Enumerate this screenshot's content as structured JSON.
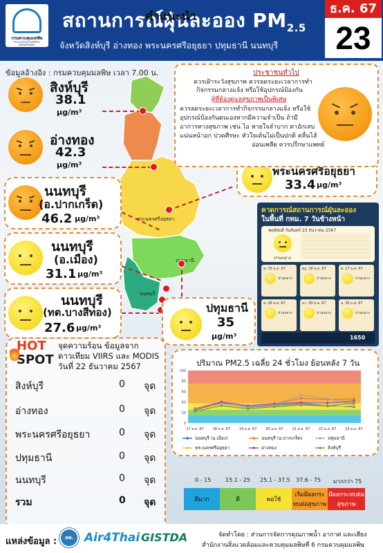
{
  "header": {
    "title": "สถานการณ์ฝุ่นละออง PM",
    "title_sub": "2.5",
    "subtitle": "จังหวัดสิงห์บุรี อ่างทอง พระนครศรีอยุธยา ปทุมธานี นนทบุรี",
    "date_month": "ธ.ค. 67",
    "date_day": "23",
    "logo_name": "กรมควบคุมมลพิษ",
    "logo_sub": "POLLUTION CONTROL DEPARTMENT"
  },
  "reference": "ข้อมูลอ้างอิง : กรมควบคุมมลพิษ เวลา 7.00 น.",
  "unit": "μg/m³",
  "provinces": [
    {
      "name": "สิงห์บุรี",
      "value": "38.1",
      "level": "orange"
    },
    {
      "name": "อ่างทอง",
      "value": "42.3",
      "level": "orange"
    },
    {
      "name": "พระนครศรีอยุธยา",
      "value": "33.4",
      "level": "yellow"
    },
    {
      "name": "นนทบุรี",
      "name2": "(อ.ปากเกร็ด)",
      "value": "46.2",
      "level": "orange"
    },
    {
      "name": "นนทบุรี",
      "name2": "(อ.เมือง)",
      "value": "31.1",
      "level": "yellow"
    },
    {
      "name": "นนทบุรี",
      "name2": "(ทต.บางสีทอง)",
      "value": "27.6",
      "level": "yellow"
    },
    {
      "name": "ปทุมธานี",
      "value": "35",
      "level": "yellow"
    }
  ],
  "map_labels": [
    "พระนครศรีอยุธยา",
    "ปทุมธานี",
    "นนทบุรี"
  ],
  "advice": {
    "title": "คำแนะนำ",
    "general_head": "ประชาชนทั่วไป",
    "general_1": "ควรเฝ้าระวังสุขภาพ ควรลดระยะเวลาการทำ",
    "general_2": "กิจกรรมกลางแจ้ง หรือใช้อุปกรณ์ป้องกัน",
    "risk_head": "ผู้ที่ต้องดูแลสุขภาพเป็นพิเศษ",
    "risk_1": "ควรลดระยะเวลาการทำกิจกรรมกลางแจ้ง หรือใช้",
    "risk_2": "อุปกรณ์ป้องกันตนเองหากมีความจำเป็น ถ้ามี",
    "risk_3": "อาการทางสุขภาพ เช่น ไอ หายใจลำบาก ตาอักเสบ",
    "risk_4": "แน่นหน้าอก ปวดศีรษะ หัวใจเต้นไม่เป็นปกติ คลื่นไส้",
    "risk_5": "อ่อนเพลีย ควรปรึกษาแพทย์"
  },
  "forecast": {
    "title1": "คาดการณ์สถานการณ์ฝุ่นละออง",
    "title2": "ในพื้นที่ กทม. 7 วันข้างหน้า",
    "date": "พฤหัสบดี วันจันทร์ 23 ธันวาคม 2567",
    "main_status": "ปานกลาง",
    "days": [
      {
        "label": "พ. 25 ธ.ค. 67",
        "status": "ปานกลาง"
      },
      {
        "label": "พฤ. 26 ธ.ค. 67",
        "status": "ปานกลาง"
      },
      {
        "label": "ศ. 27 ธ.ค. 67",
        "status": "ปานกลาง"
      },
      {
        "label": "ส. 28 ธ.ค. 67",
        "status": "ปานกลาง"
      },
      {
        "label": "อา. 29 ธ.ค. 67",
        "status": "ปานกลาง"
      },
      {
        "label": "จ. 30 ธ.ค. 67",
        "status": "ปานกลาง"
      }
    ],
    "hotline": "1650"
  },
  "hotspot": {
    "hot": "HOT",
    "spot": "SPOT",
    "desc1": "จุดความร้อน ข้อมูลจาก",
    "desc2": "ดาวเทียม VIIRS และ MODIS",
    "desc3": "วันที่ 22 ธันวาคม 2567",
    "unit": "จุด",
    "rows": [
      {
        "name": "สิงห์บุรี",
        "count": "0"
      },
      {
        "name": "อ่างทอง",
        "count": "0"
      },
      {
        "name": "พระนครศรีอยุธยา",
        "count": "0"
      },
      {
        "name": "ปทุมธานี",
        "count": "0"
      },
      {
        "name": "นนทบุรี",
        "count": "0"
      }
    ],
    "total_label": "รวม",
    "total_count": "0"
  },
  "chart_data": {
    "type": "line",
    "title": "ปริมาณ PM2.5 เฉลี่ย 24 ชั่วโมง ย้อนหลัง 7 วัน",
    "categories": [
      "17 ธ.ค. 67",
      "18 ธ.ค. 67",
      "19 ธ.ค. 67",
      "20 ธ.ค. 67",
      "21 ธ.ค. 67",
      "22 ธ.ค. 67",
      "23 ธ.ค. 67"
    ],
    "ylim": [
      0,
      100
    ],
    "bands": [
      {
        "from": 0,
        "to": 15,
        "color": "#57c5e8"
      },
      {
        "from": 15,
        "to": 25,
        "color": "#8fd36a"
      },
      {
        "from": 25,
        "to": 37.5,
        "color": "#f6e64a"
      },
      {
        "from": 37.5,
        "to": 75,
        "color": "#f6b34b"
      },
      {
        "from": 75,
        "to": 100,
        "color": "#f08a7a"
      }
    ],
    "series": [
      {
        "name": "นนทบุรี (อ.เมือง)",
        "color": "#3a6bc8",
        "values": [
          26,
          38,
          30,
          34,
          37,
          33,
          31
        ]
      },
      {
        "name": "นนทบุรี (อ.ปากเกร็ด)",
        "color": "#e77b2c",
        "values": [
          28,
          40,
          33,
          36,
          47,
          45,
          46
        ]
      },
      {
        "name": "ปทุมธานี",
        "color": "#a9a9a9",
        "values": [
          27,
          37,
          31,
          35,
          53,
          47,
          35
        ]
      },
      {
        "name": "พระนครศรีอยุธยา",
        "color": "#f2c12e",
        "values": [
          24,
          35,
          28,
          32,
          35,
          31,
          33
        ]
      },
      {
        "name": "อ่างทอง",
        "color": "#9b4ec2",
        "values": [
          25,
          40,
          33,
          37,
          39,
          38,
          42
        ]
      },
      {
        "name": "สิงห์บุรี",
        "color": "#5fae3e",
        "values": [
          22,
          33,
          27,
          31,
          34,
          33,
          38
        ]
      }
    ]
  },
  "scale": {
    "headers": [
      "0 - 15",
      "15.1 - 25",
      "25.1 - 37.5",
      "37.6 - 75",
      "มากกว่า 75"
    ],
    "labels": [
      "ดีมาก",
      "ดี",
      "พอใช้",
      "เริ่มมีผลกระทบต่อสุขภาพ",
      "มีผลกระทบต่อสุขภาพ"
    ],
    "colors": [
      "#1fa3dc",
      "#7cc75a",
      "#f5e231",
      "#f39a26",
      "#e12b25"
    ]
  },
  "footer": {
    "source_label": "แหล่งข้อมูล :",
    "src_pcd": "คพ.",
    "src_air": "Air4Thai",
    "src_gis": "GISTDA",
    "made_by": "จัดทำโดย : ส่วนการจัดการคุณภาพน้ำ อากาศ และเสียง",
    "office": "สำนักงานสิ่งแวดล้อมและควบคุมมลพิษที่ 6 กรมควบคุมมลพิษ"
  }
}
